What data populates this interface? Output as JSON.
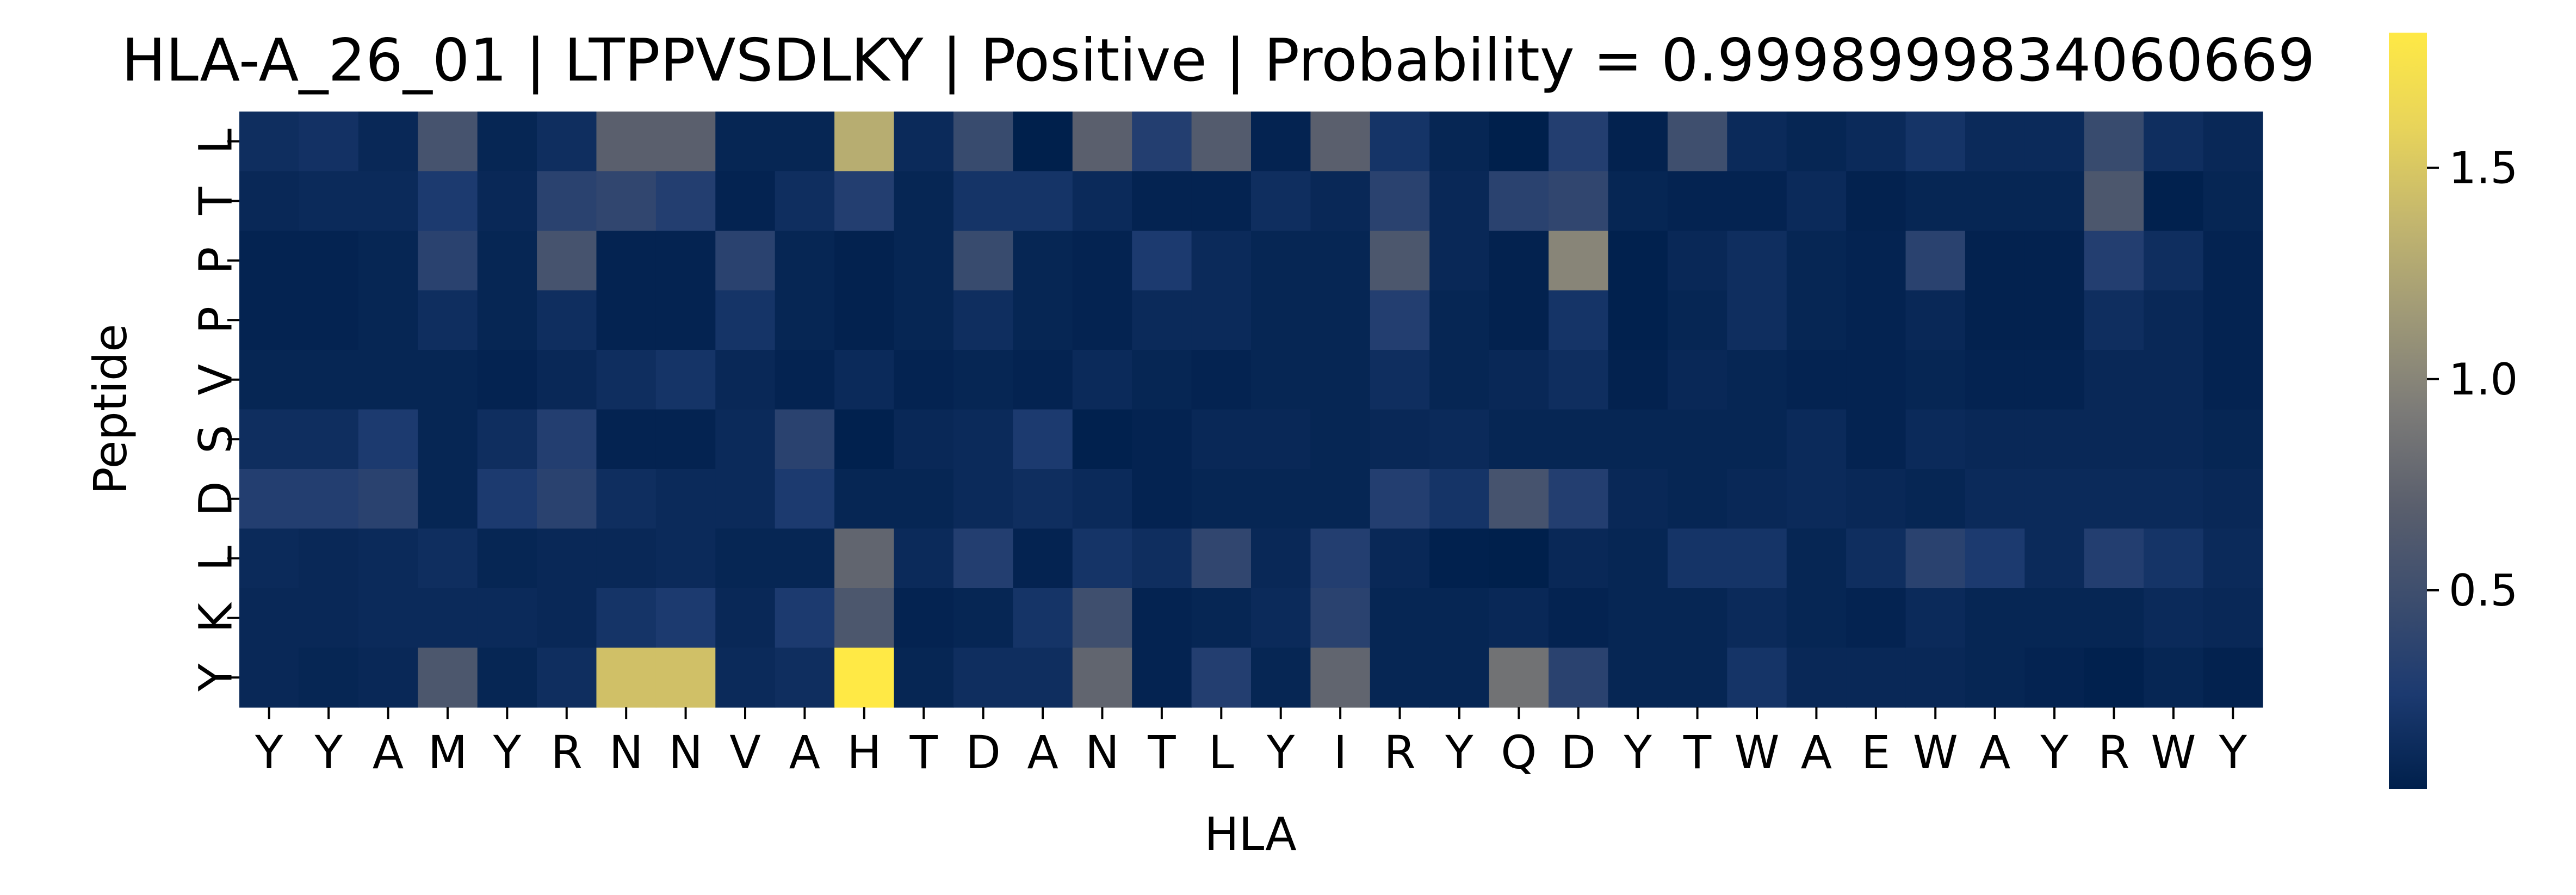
{
  "chart_data": {
    "type": "heatmap",
    "title": "HLA-A_26_01 | LTPPVSDLKY | Positive | Probability = 0.9998999834060669",
    "xlabel": "HLA",
    "ylabel": "Peptide",
    "x_categories": [
      "Y",
      "Y",
      "A",
      "M",
      "Y",
      "R",
      "N",
      "N",
      "V",
      "A",
      "H",
      "T",
      "D",
      "A",
      "N",
      "T",
      "L",
      "Y",
      "I",
      "R",
      "Y",
      "Q",
      "D",
      "Y",
      "T",
      "W",
      "A",
      "E",
      "W",
      "A",
      "Y",
      "R",
      "W",
      "Y"
    ],
    "y_categories": [
      "L",
      "T",
      "P",
      "P",
      "V",
      "S",
      "D",
      "L",
      "K",
      "Y"
    ],
    "colormap": "cividis",
    "colorbar": {
      "range": [
        0.03,
        1.82
      ],
      "ticks": [
        {
          "value": 0.5,
          "label": "0.5"
        },
        {
          "value": 1.0,
          "label": "1.0"
        },
        {
          "value": 1.5,
          "label": "1.5"
        }
      ]
    },
    "values": [
      [
        0.15,
        0.18,
        0.1,
        0.55,
        0.08,
        0.15,
        0.7,
        0.7,
        0.08,
        0.08,
        1.3,
        0.12,
        0.45,
        0.03,
        0.7,
        0.3,
        0.65,
        0.06,
        0.7,
        0.2,
        0.08,
        0.03,
        0.3,
        0.05,
        0.5,
        0.12,
        0.08,
        0.12,
        0.2,
        0.12,
        0.12,
        0.45,
        0.15,
        0.1
      ],
      [
        0.1,
        0.12,
        0.12,
        0.25,
        0.1,
        0.35,
        0.4,
        0.3,
        0.06,
        0.15,
        0.3,
        0.08,
        0.2,
        0.2,
        0.12,
        0.06,
        0.06,
        0.15,
        0.1,
        0.35,
        0.1,
        0.35,
        0.4,
        0.08,
        0.06,
        0.06,
        0.12,
        0.05,
        0.08,
        0.08,
        0.08,
        0.6,
        0.04,
        0.08
      ],
      [
        0.06,
        0.06,
        0.08,
        0.35,
        0.08,
        0.55,
        0.06,
        0.06,
        0.35,
        0.08,
        0.05,
        0.08,
        0.45,
        0.08,
        0.06,
        0.25,
        0.12,
        0.08,
        0.08,
        0.6,
        0.1,
        0.05,
        1.0,
        0.04,
        0.1,
        0.15,
        0.08,
        0.06,
        0.35,
        0.05,
        0.05,
        0.3,
        0.15,
        0.06
      ],
      [
        0.06,
        0.06,
        0.08,
        0.15,
        0.08,
        0.15,
        0.06,
        0.06,
        0.2,
        0.08,
        0.05,
        0.08,
        0.15,
        0.08,
        0.06,
        0.12,
        0.12,
        0.08,
        0.08,
        0.3,
        0.08,
        0.05,
        0.2,
        0.04,
        0.08,
        0.15,
        0.08,
        0.06,
        0.1,
        0.05,
        0.05,
        0.15,
        0.1,
        0.06
      ],
      [
        0.08,
        0.08,
        0.08,
        0.08,
        0.06,
        0.1,
        0.15,
        0.2,
        0.1,
        0.06,
        0.12,
        0.06,
        0.08,
        0.06,
        0.12,
        0.08,
        0.06,
        0.08,
        0.08,
        0.15,
        0.08,
        0.1,
        0.15,
        0.05,
        0.1,
        0.08,
        0.06,
        0.06,
        0.08,
        0.06,
        0.06,
        0.1,
        0.1,
        0.06
      ],
      [
        0.15,
        0.15,
        0.25,
        0.08,
        0.15,
        0.3,
        0.06,
        0.06,
        0.12,
        0.35,
        0.04,
        0.1,
        0.12,
        0.25,
        0.04,
        0.06,
        0.1,
        0.1,
        0.08,
        0.1,
        0.12,
        0.08,
        0.08,
        0.08,
        0.08,
        0.08,
        0.12,
        0.06,
        0.12,
        0.1,
        0.1,
        0.1,
        0.1,
        0.08
      ],
      [
        0.3,
        0.3,
        0.35,
        0.08,
        0.25,
        0.35,
        0.15,
        0.12,
        0.12,
        0.25,
        0.08,
        0.08,
        0.12,
        0.15,
        0.12,
        0.06,
        0.08,
        0.08,
        0.08,
        0.3,
        0.2,
        0.55,
        0.3,
        0.1,
        0.08,
        0.1,
        0.12,
        0.1,
        0.08,
        0.12,
        0.12,
        0.12,
        0.12,
        0.1
      ],
      [
        0.12,
        0.1,
        0.12,
        0.15,
        0.08,
        0.1,
        0.1,
        0.12,
        0.08,
        0.08,
        0.75,
        0.12,
        0.3,
        0.06,
        0.2,
        0.15,
        0.4,
        0.1,
        0.3,
        0.1,
        0.04,
        0.03,
        0.1,
        0.08,
        0.2,
        0.2,
        0.08,
        0.15,
        0.35,
        0.25,
        0.12,
        0.3,
        0.2,
        0.12
      ],
      [
        0.1,
        0.1,
        0.12,
        0.12,
        0.12,
        0.1,
        0.2,
        0.25,
        0.1,
        0.25,
        0.6,
        0.06,
        0.08,
        0.2,
        0.5,
        0.06,
        0.08,
        0.12,
        0.35,
        0.08,
        0.08,
        0.1,
        0.06,
        0.08,
        0.08,
        0.12,
        0.08,
        0.06,
        0.12,
        0.08,
        0.08,
        0.08,
        0.12,
        0.1
      ],
      [
        0.1,
        0.08,
        0.1,
        0.6,
        0.08,
        0.15,
        1.45,
        1.45,
        0.12,
        0.15,
        1.82,
        0.08,
        0.15,
        0.15,
        0.75,
        0.06,
        0.3,
        0.08,
        0.75,
        0.08,
        0.08,
        0.85,
        0.35,
        0.08,
        0.08,
        0.2,
        0.1,
        0.1,
        0.1,
        0.08,
        0.06,
        0.04,
        0.08,
        0.05
      ]
    ]
  }
}
